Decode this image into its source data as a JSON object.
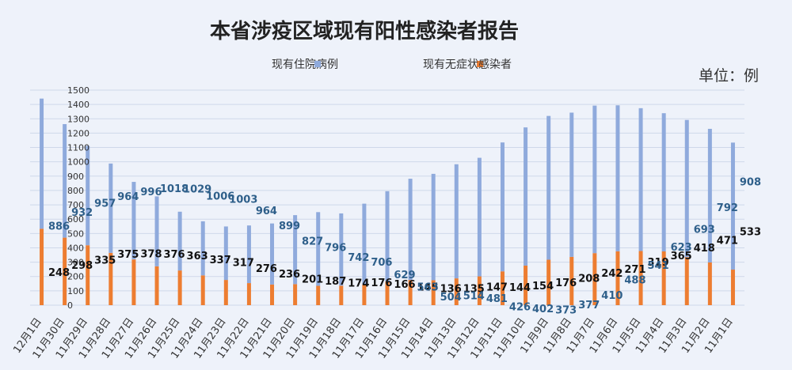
{
  "chart_data": {
    "type": "bar",
    "title": "本省涉疫区域现有阳性感染者报告",
    "unit_label": "单位：例",
    "ylim": [
      0,
      1500
    ],
    "yticks": [
      0,
      100,
      200,
      300,
      400,
      500,
      600,
      700,
      800,
      900,
      1000,
      1100,
      1200,
      1300,
      1400,
      1500
    ],
    "categories": [
      "11月1日",
      "11月2日",
      "11月3日",
      "11月4日",
      "11月5日",
      "11月6日",
      "11月7日",
      "11月8日",
      "11月9日",
      "11月10日",
      "11月11日",
      "11月12日",
      "11月13日",
      "11月14日",
      "11月15日",
      "11月16日",
      "11月17日",
      "11月18日",
      "11月19日",
      "11月20日",
      "11月21日",
      "11月22日",
      "11月23日",
      "11月24日",
      "11月25日",
      "11月26日",
      "11月27日",
      "11月28日",
      "11月29日",
      "11月30日",
      "12月1日"
    ],
    "series": [
      {
        "name": "现有住院病例",
        "color": "#ed7d31",
        "values": [
          248,
          298,
          335,
          375,
          378,
          376,
          363,
          337,
          317,
          276,
          236,
          201,
          187,
          174,
          176,
          166,
          145,
          136,
          135,
          147,
          144,
          154,
          176,
          208,
          242,
          271,
          319,
          365,
          418,
          471,
          533
        ]
      },
      {
        "name": "现有无症状感染者",
        "color": "#8faadc",
        "values": [
          886,
          932,
          957,
          964,
          996,
          1018,
          1029,
          1006,
          1003,
          964,
          899,
          827,
          796,
          742,
          706,
          629,
          563,
          504,
          514,
          481,
          426,
          402,
          373,
          377,
          410,
          488,
          541,
          623,
          693,
          792,
          908
        ]
      }
    ],
    "legend_position": "top",
    "stacked": true,
    "grid": true
  }
}
